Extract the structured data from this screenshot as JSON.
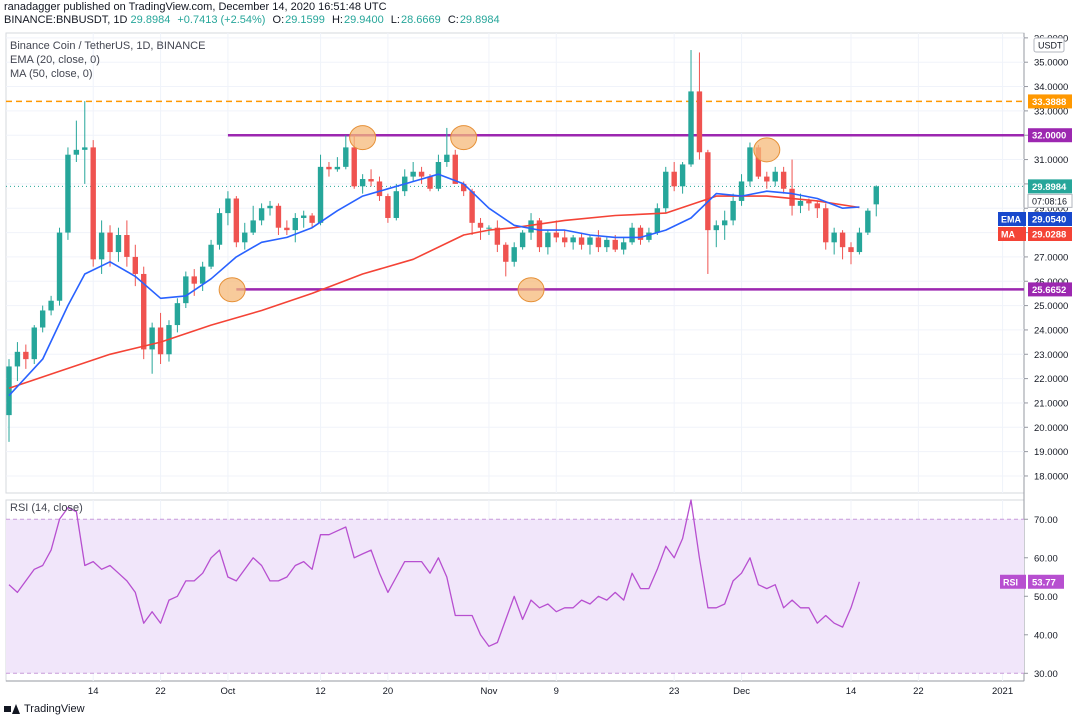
{
  "header": {
    "published": "ranadagger published on TradingView.com, December 14, 2020 16:51:48 UTC",
    "symbol": "BINANCE:BNBUSDT, 1D",
    "last": "29.8984",
    "change": "+0.7413 (+2.54%)",
    "o_label": "O:",
    "o_value": "29.1599",
    "h_label": "H:",
    "h_value": "29.9400",
    "l_label": "L:",
    "l_value": "28.6669",
    "c_label": "C:",
    "c_value": "29.8984"
  },
  "legend": {
    "title": "Binance Coin / TetherUS, 1D, BINANCE",
    "ema": "EMA (20, close, 0)",
    "ma": "MA (50, close, 0)",
    "rsi": "RSI (14, close)"
  },
  "footer": {
    "brand": "TradingView"
  },
  "colors": {
    "up": "#26a69a",
    "down": "#ef5350",
    "ema": "#2962ff",
    "ma": "#f44336",
    "level": "#9c27b0",
    "dashed": "#ff9800",
    "rsi": "#b74fd0",
    "rsi_band": "#f1e6fa"
  },
  "chart_data": [
    {
      "type": "candlestick",
      "title": "Binance Coin / TetherUS, 1D, BINANCE",
      "ylim": [
        17.3,
        36.2
      ],
      "y_ticks": [
        "36.0000",
        "35.0000",
        "34.0000",
        "33.0000",
        "32.0000",
        "31.0000",
        "30.0000",
        "29.0000",
        "28.0000",
        "27.0000",
        "26.0000",
        "25.0000",
        "24.0000",
        "23.0000",
        "22.0000",
        "21.0000",
        "20.0000",
        "19.0000",
        "18.0000"
      ],
      "y_axis_unit": "USDT",
      "x_ticks": [
        {
          "i": 10,
          "label": "14"
        },
        {
          "i": 18,
          "label": "22"
        },
        {
          "i": 26,
          "label": "Oct"
        },
        {
          "i": 37,
          "label": "12"
        },
        {
          "i": 45,
          "label": "20"
        },
        {
          "i": 57,
          "label": "Nov"
        },
        {
          "i": 65,
          "label": "9"
        },
        {
          "i": 79,
          "label": "23"
        },
        {
          "i": 87,
          "label": "Dec"
        },
        {
          "i": 100,
          "label": "14"
        },
        {
          "i": 108,
          "label": "22"
        },
        {
          "i": 118,
          "label": "2021"
        }
      ],
      "candles": [
        [
          20.5,
          22.8,
          19.4,
          22.5
        ],
        [
          22.5,
          23.5,
          21.9,
          23.1
        ],
        [
          23.1,
          23.4,
          22.4,
          22.8
        ],
        [
          22.8,
          24.2,
          22.6,
          24.1
        ],
        [
          24.1,
          25.0,
          23.9,
          24.8
        ],
        [
          24.8,
          25.4,
          24.6,
          25.2
        ],
        [
          25.2,
          28.2,
          25.0,
          28.0
        ],
        [
          28.0,
          31.5,
          27.7,
          31.2
        ],
        [
          31.2,
          32.6,
          30.9,
          31.4
        ],
        [
          31.4,
          33.4,
          30.0,
          31.5
        ],
        [
          31.5,
          31.8,
          26.6,
          26.9
        ],
        [
          26.9,
          28.5,
          26.3,
          28.0
        ],
        [
          28.0,
          28.3,
          26.6,
          27.2
        ],
        [
          27.2,
          28.2,
          26.8,
          27.9
        ],
        [
          27.9,
          28.5,
          26.6,
          27.0
        ],
        [
          27.0,
          27.5,
          25.8,
          26.3
        ],
        [
          26.3,
          26.6,
          22.8,
          23.2
        ],
        [
          23.2,
          24.3,
          22.2,
          24.1
        ],
        [
          24.1,
          24.7,
          22.6,
          23.0
        ],
        [
          23.0,
          24.4,
          22.7,
          24.2
        ],
        [
          24.2,
          25.3,
          23.9,
          25.1
        ],
        [
          25.1,
          26.4,
          24.9,
          26.2
        ],
        [
          26.2,
          26.5,
          25.4,
          25.9
        ],
        [
          25.9,
          26.8,
          25.6,
          26.6
        ],
        [
          26.6,
          27.7,
          26.5,
          27.5
        ],
        [
          27.5,
          29.0,
          27.3,
          28.8
        ],
        [
          28.8,
          29.7,
          28.3,
          29.4
        ],
        [
          29.4,
          29.5,
          27.4,
          27.6
        ],
        [
          27.6,
          28.4,
          27.3,
          28.0
        ],
        [
          28.0,
          29.1,
          27.9,
          28.5
        ],
        [
          28.5,
          29.2,
          28.3,
          29.0
        ],
        [
          29.0,
          29.3,
          28.7,
          29.1
        ],
        [
          29.1,
          29.2,
          27.9,
          28.2
        ],
        [
          28.2,
          28.5,
          27.9,
          28.1
        ],
        [
          28.1,
          28.8,
          27.6,
          28.6
        ],
        [
          28.6,
          28.9,
          28.2,
          28.7
        ],
        [
          28.7,
          28.8,
          28.2,
          28.4
        ],
        [
          28.4,
          31.2,
          28.3,
          30.7
        ],
        [
          30.7,
          30.9,
          30.3,
          30.6
        ],
        [
          30.6,
          31.1,
          30.5,
          30.7
        ],
        [
          30.7,
          32.0,
          30.6,
          31.5
        ],
        [
          31.5,
          32.0,
          29.8,
          29.9
        ],
        [
          29.9,
          30.4,
          29.6,
          30.2
        ],
        [
          30.2,
          30.6,
          29.9,
          30.1
        ],
        [
          30.1,
          30.3,
          29.3,
          29.5
        ],
        [
          29.5,
          29.6,
          28.4,
          28.6
        ],
        [
          28.6,
          30.0,
          28.5,
          29.7
        ],
        [
          29.7,
          30.6,
          29.5,
          30.3
        ],
        [
          30.3,
          30.9,
          30.1,
          30.5
        ],
        [
          30.5,
          30.7,
          30.0,
          30.3
        ],
        [
          30.3,
          30.4,
          29.7,
          29.8
        ],
        [
          29.8,
          31.2,
          29.7,
          30.9
        ],
        [
          30.9,
          32.3,
          30.7,
          31.2
        ],
        [
          31.2,
          31.4,
          30.0,
          30.0
        ],
        [
          30.0,
          30.1,
          29.5,
          29.7
        ],
        [
          29.7,
          29.8,
          27.9,
          28.4
        ],
        [
          28.4,
          28.6,
          27.7,
          28.2
        ],
        [
          28.2,
          28.3,
          27.9,
          28.2
        ],
        [
          28.2,
          28.5,
          27.2,
          27.5
        ],
        [
          27.5,
          27.6,
          26.2,
          26.8
        ],
        [
          26.8,
          27.6,
          26.6,
          27.4
        ],
        [
          27.4,
          28.1,
          27.3,
          28.0
        ],
        [
          28.0,
          28.8,
          27.7,
          28.5
        ],
        [
          28.5,
          28.6,
          27.2,
          27.4
        ],
        [
          27.4,
          28.1,
          27.1,
          28.0
        ],
        [
          28.0,
          28.5,
          27.6,
          27.8
        ],
        [
          27.8,
          28.1,
          27.4,
          27.6
        ],
        [
          27.6,
          27.9,
          27.3,
          27.8
        ],
        [
          27.8,
          28.0,
          27.3,
          27.5
        ],
        [
          27.5,
          27.9,
          27.1,
          27.8
        ],
        [
          27.8,
          28.1,
          27.2,
          27.4
        ],
        [
          27.4,
          27.8,
          27.2,
          27.7
        ],
        [
          27.7,
          27.9,
          27.2,
          27.3
        ],
        [
          27.3,
          27.8,
          27.1,
          27.6
        ],
        [
          27.6,
          28.4,
          27.5,
          28.2
        ],
        [
          28.2,
          28.3,
          27.5,
          27.7
        ],
        [
          27.7,
          28.2,
          27.6,
          28.0
        ],
        [
          28.0,
          29.2,
          27.9,
          29.0
        ],
        [
          29.0,
          30.7,
          28.8,
          30.5
        ],
        [
          30.5,
          30.9,
          29.7,
          29.9
        ],
        [
          29.9,
          30.9,
          29.6,
          30.8
        ],
        [
          30.8,
          35.5,
          30.7,
          33.8
        ],
        [
          33.8,
          35.4,
          31.0,
          31.3
        ],
        [
          31.3,
          31.4,
          26.3,
          28.1
        ],
        [
          28.1,
          28.5,
          27.4,
          28.3
        ],
        [
          28.3,
          28.9,
          27.7,
          28.5
        ],
        [
          28.5,
          29.6,
          28.3,
          29.3
        ],
        [
          29.3,
          30.4,
          29.1,
          30.1
        ],
        [
          30.1,
          31.7,
          29.9,
          31.5
        ],
        [
          31.5,
          31.6,
          30.2,
          30.3
        ],
        [
          30.3,
          30.5,
          29.8,
          30.1
        ],
        [
          30.1,
          30.7,
          29.9,
          30.5
        ],
        [
          30.5,
          30.7,
          29.6,
          29.8
        ],
        [
          29.8,
          31.0,
          28.7,
          29.1
        ],
        [
          29.1,
          29.6,
          28.8,
          29.3
        ],
        [
          29.3,
          29.4,
          28.9,
          29.2
        ],
        [
          29.2,
          29.3,
          28.6,
          29.0
        ],
        [
          29.0,
          29.2,
          27.3,
          27.6
        ],
        [
          27.6,
          28.2,
          27.1,
          28.0
        ],
        [
          28.0,
          28.1,
          26.9,
          27.4
        ],
        [
          27.4,
          27.6,
          26.7,
          27.2
        ],
        [
          27.2,
          28.2,
          27.1,
          28.0
        ],
        [
          28.0,
          29.0,
          27.9,
          28.9
        ],
        [
          29.1599,
          29.94,
          28.6669,
          29.8984
        ]
      ],
      "ema": {
        "name": "EMA",
        "value": "29.0540",
        "x": [
          0,
          4,
          7,
          9,
          12,
          15,
          18,
          21,
          24,
          27,
          30,
          33,
          36,
          39,
          42,
          45,
          48,
          51,
          54,
          57,
          60,
          63,
          66,
          69,
          72,
          75,
          78,
          81,
          84,
          87,
          90,
          93,
          96,
          99,
          101
        ],
        "y": [
          21.3,
          22.8,
          25.0,
          26.3,
          26.8,
          26.2,
          25.3,
          25.4,
          26.1,
          27.0,
          27.6,
          27.8,
          28.2,
          28.9,
          29.5,
          29.8,
          30.1,
          30.4,
          30.0,
          29.0,
          28.3,
          28.1,
          28.1,
          27.9,
          27.8,
          27.8,
          28.1,
          28.6,
          29.6,
          29.5,
          29.7,
          29.6,
          29.4,
          29.0,
          29.05
        ]
      },
      "ma": {
        "name": "MA",
        "value": "29.0288",
        "x": [
          0,
          6,
          12,
          18,
          24,
          30,
          36,
          42,
          48,
          54,
          57,
          60,
          66,
          72,
          78,
          84,
          90,
          96,
          101
        ],
        "y": [
          21.6,
          22.3,
          23.0,
          23.5,
          24.2,
          24.8,
          25.5,
          26.3,
          26.9,
          27.9,
          28.1,
          28.2,
          28.5,
          28.7,
          28.8,
          29.5,
          29.5,
          29.3,
          29.03
        ]
      },
      "levels": [
        {
          "value": 33.3888,
          "label": "33.3888",
          "style": "dashed"
        },
        {
          "value": 32.0,
          "label": "32.0000",
          "from": 26
        },
        {
          "value": 25.6652,
          "label": "25.6652",
          "from": 27
        }
      ],
      "markers": [
        {
          "i": 26.5,
          "y": 25.65
        },
        {
          "i": 42,
          "y": 31.9
        },
        {
          "i": 54,
          "y": 31.9
        },
        {
          "i": 62,
          "y": 25.65
        },
        {
          "i": 90,
          "y": 31.4
        }
      ],
      "last_price": {
        "value": "29.8984",
        "countdown": "07:08:16"
      }
    },
    {
      "type": "line",
      "title": "RSI (14, close)",
      "ylim": [
        28,
        75
      ],
      "y_ticks": [
        "70.00",
        "60.00",
        "50.00",
        "40.00",
        "30.00"
      ],
      "band": [
        30,
        70
      ],
      "series": [
        {
          "name": "RSI",
          "value": "53.77",
          "values": [
            53,
            51,
            54,
            57,
            58,
            62,
            70,
            73,
            72,
            58,
            59,
            57,
            58,
            56,
            54,
            51,
            43,
            46,
            43,
            49,
            50,
            54,
            54,
            56,
            60,
            62,
            55,
            54,
            57,
            60,
            58,
            54,
            54,
            55,
            58,
            59,
            57,
            66,
            66,
            67,
            68,
            60,
            61,
            62,
            56,
            51,
            55,
            59,
            59,
            59,
            56,
            60,
            55,
            45,
            45,
            45,
            40,
            37,
            38,
            44,
            50,
            44,
            49,
            47,
            48,
            46,
            47,
            47,
            49,
            48,
            50,
            49,
            51,
            49,
            56,
            52,
            52,
            57,
            63,
            60,
            65,
            75,
            60,
            47,
            47,
            48,
            54,
            56,
            60,
            53,
            52,
            53,
            47,
            49,
            47,
            47,
            43,
            45,
            43,
            42,
            47,
            53.77
          ]
        }
      ]
    }
  ]
}
